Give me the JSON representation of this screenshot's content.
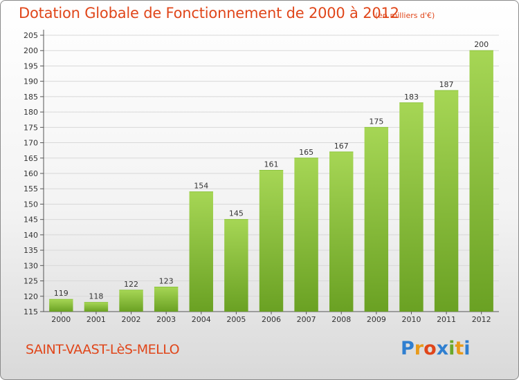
{
  "header": {
    "title": "Dotation Globale de Fonctionnement de 2000 à 2012",
    "unit": "(en milliers d'€)"
  },
  "footer": {
    "commune": "SAINT-VAAST-LèS-MELLO",
    "logo_letters": [
      "P",
      "r",
      "o",
      "x",
      "i",
      "t",
      "i"
    ],
    "logo_colors": [
      "#2f7fd0",
      "#e89a1a",
      "#e0461a",
      "#2f7fd0",
      "#6aa82a",
      "#e89a1a",
      "#2f7fd0"
    ]
  },
  "colors": {
    "bar_top": "#a6d655",
    "bar_bottom": "#6aa123",
    "grid": "#d8d8d8",
    "text": "#333333"
  },
  "chart_data": {
    "type": "bar",
    "categories": [
      "2000",
      "2001",
      "2002",
      "2003",
      "2004",
      "2005",
      "2006",
      "2007",
      "2008",
      "2009",
      "2010",
      "2011",
      "2012"
    ],
    "values": [
      119,
      118,
      122,
      123,
      154,
      145,
      161,
      165,
      167,
      175,
      183,
      187,
      200
    ],
    "data_labels": [
      "119",
      "118",
      "122",
      "123",
      "154",
      "145",
      "161",
      "165",
      "167",
      "175",
      "183",
      "187",
      "200"
    ],
    "y_ticks": [
      "115",
      "120",
      "125",
      "130",
      "135",
      "140",
      "145",
      "150",
      "155",
      "160",
      "165",
      "170",
      "175",
      "180",
      "185",
      "190",
      "195",
      "200",
      "205"
    ],
    "ylim": [
      115,
      205
    ],
    "grid": true
  }
}
